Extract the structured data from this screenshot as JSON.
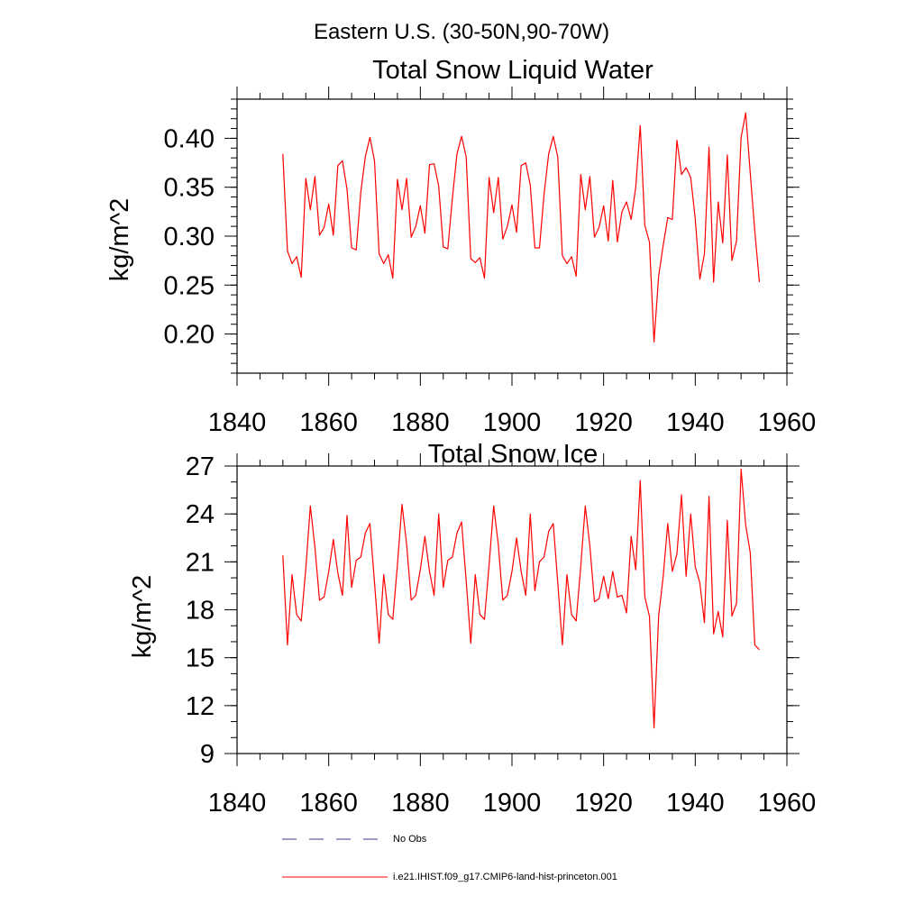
{
  "suptitle": "Eastern U.S. (30-50N,90-70W)",
  "colors": {
    "model_line": "#ff0000",
    "obs_line": "#3a3a8c",
    "axis": "#000000"
  },
  "legend": {
    "placement": "bottom-left",
    "entries": [
      {
        "label": "No Obs",
        "style": "dashed",
        "color": "#3a3a8c"
      },
      {
        "label": "i.e21.IHIST.f09_g17.CMIP6-land-hist-princeton.001",
        "style": "solid",
        "color": "#ff0000"
      }
    ]
  },
  "chart_data": [
    {
      "type": "line",
      "title": "Total Snow Liquid Water",
      "xlabel": "",
      "ylabel": "kg/m^2",
      "xlim": [
        1840,
        1960
      ],
      "ylim": [
        0.16,
        0.44
      ],
      "xticks": [
        "1840",
        "1860",
        "1880",
        "1900",
        "1920",
        "1940",
        "1960"
      ],
      "yticks": [
        "0.20",
        "0.25",
        "0.30",
        "0.35",
        "0.40"
      ],
      "grid": false,
      "x": [
        1850,
        1851,
        1852,
        1853,
        1854,
        1855,
        1856,
        1857,
        1858,
        1859,
        1860,
        1861,
        1862,
        1863,
        1864,
        1865,
        1866,
        1867,
        1868,
        1869,
        1870,
        1871,
        1872,
        1873,
        1874,
        1875,
        1876,
        1877,
        1878,
        1879,
        1880,
        1881,
        1882,
        1883,
        1884,
        1885,
        1886,
        1887,
        1888,
        1889,
        1890,
        1891,
        1892,
        1893,
        1894,
        1895,
        1896,
        1897,
        1898,
        1899,
        1900,
        1901,
        1902,
        1903,
        1904,
        1905,
        1906,
        1907,
        1908,
        1909,
        1910,
        1911,
        1912,
        1913,
        1914,
        1915,
        1916,
        1917,
        1918,
        1919,
        1920,
        1921,
        1922,
        1923,
        1924,
        1925,
        1926,
        1927,
        1928,
        1929,
        1930,
        1931,
        1932,
        1933,
        1934,
        1935,
        1936,
        1937,
        1938,
        1939,
        1940,
        1941,
        1942,
        1943,
        1944,
        1945,
        1946,
        1947,
        1948,
        1949,
        1950,
        1951,
        1952,
        1953,
        1954
      ],
      "series": [
        {
          "name": "i.e21.IHIST.f09_g17.CMIP6-land-hist-princeton.001",
          "values": [
            0.384,
            0.285,
            0.272,
            0.279,
            0.258,
            0.359,
            0.327,
            0.361,
            0.301,
            0.309,
            0.333,
            0.301,
            0.372,
            0.377,
            0.348,
            0.288,
            0.286,
            0.345,
            0.381,
            0.401,
            0.377,
            0.282,
            0.272,
            0.281,
            0.257,
            0.358,
            0.327,
            0.359,
            0.299,
            0.31,
            0.331,
            0.303,
            0.373,
            0.374,
            0.351,
            0.289,
            0.287,
            0.339,
            0.384,
            0.402,
            0.381,
            0.277,
            0.273,
            0.278,
            0.257,
            0.36,
            0.324,
            0.36,
            0.297,
            0.31,
            0.332,
            0.304,
            0.372,
            0.375,
            0.352,
            0.288,
            0.288,
            0.343,
            0.384,
            0.402,
            0.381,
            0.28,
            0.272,
            0.279,
            0.259,
            0.363,
            0.327,
            0.361,
            0.299,
            0.309,
            0.331,
            0.295,
            0.357,
            0.294,
            0.325,
            0.335,
            0.317,
            0.35,
            0.413,
            0.311,
            0.294,
            0.192,
            0.259,
            0.291,
            0.319,
            0.317,
            0.398,
            0.363,
            0.37,
            0.36,
            0.318,
            0.256,
            0.282,
            0.391,
            0.253,
            0.335,
            0.293,
            0.383,
            0.275,
            0.295,
            0.401,
            0.426,
            0.365,
            0.305,
            0.253
          ]
        }
      ]
    },
    {
      "type": "line",
      "title": "Total Snow Ice",
      "xlabel": "",
      "ylabel": "kg/m^2",
      "xlim": [
        1840,
        1960
      ],
      "ylim": [
        9,
        27
      ],
      "xticks": [
        "1840",
        "1860",
        "1880",
        "1900",
        "1920",
        "1940",
        "1960"
      ],
      "yticks": [
        "9",
        "12",
        "15",
        "18",
        "21",
        "24",
        "27"
      ],
      "grid": false,
      "x": [
        1850,
        1851,
        1852,
        1853,
        1854,
        1855,
        1856,
        1857,
        1858,
        1859,
        1860,
        1861,
        1862,
        1863,
        1864,
        1865,
        1866,
        1867,
        1868,
        1869,
        1870,
        1871,
        1872,
        1873,
        1874,
        1875,
        1876,
        1877,
        1878,
        1879,
        1880,
        1881,
        1882,
        1883,
        1884,
        1885,
        1886,
        1887,
        1888,
        1889,
        1890,
        1891,
        1892,
        1893,
        1894,
        1895,
        1896,
        1897,
        1898,
        1899,
        1900,
        1901,
        1902,
        1903,
        1904,
        1905,
        1906,
        1907,
        1908,
        1909,
        1910,
        1911,
        1912,
        1913,
        1914,
        1915,
        1916,
        1917,
        1918,
        1919,
        1920,
        1921,
        1922,
        1923,
        1924,
        1925,
        1926,
        1927,
        1928,
        1929,
        1930,
        1931,
        1932,
        1933,
        1934,
        1935,
        1936,
        1937,
        1938,
        1939,
        1940,
        1941,
        1942,
        1943,
        1944,
        1945,
        1946,
        1947,
        1948,
        1949,
        1950,
        1951,
        1952,
        1953,
        1954
      ],
      "series": [
        {
          "name": "i.e21.IHIST.f09_g17.CMIP6-land-hist-princeton.001",
          "values": [
            21.4,
            15.8,
            20.2,
            17.7,
            17.3,
            20.6,
            24.5,
            21.9,
            18.6,
            18.8,
            20.4,
            22.4,
            20.3,
            18.9,
            23.9,
            19.4,
            21.1,
            21.3,
            22.8,
            23.4,
            19.7,
            15.9,
            20.2,
            17.7,
            17.4,
            20.8,
            24.6,
            22.1,
            18.6,
            18.9,
            20.5,
            22.6,
            20.4,
            18.9,
            24.0,
            19.4,
            21.1,
            21.3,
            22.8,
            23.5,
            19.8,
            15.9,
            20.2,
            17.7,
            17.4,
            20.8,
            24.5,
            22.1,
            18.6,
            18.9,
            20.4,
            22.5,
            20.4,
            18.9,
            24.0,
            19.2,
            21.0,
            21.3,
            22.9,
            23.4,
            19.7,
            15.8,
            20.2,
            17.7,
            17.3,
            20.7,
            24.5,
            22.0,
            18.5,
            18.7,
            20.1,
            18.7,
            20.4,
            18.8,
            18.9,
            17.8,
            22.6,
            20.5,
            26.1,
            18.8,
            17.6,
            10.6,
            17.6,
            20.1,
            23.4,
            20.4,
            21.5,
            25.2,
            20.1,
            24.0,
            20.7,
            19.7,
            17.2,
            25.1,
            16.5,
            17.9,
            16.3,
            23.6,
            17.6,
            18.4,
            26.8,
            23.3,
            21.6,
            15.8,
            15.5
          ]
        }
      ]
    }
  ]
}
